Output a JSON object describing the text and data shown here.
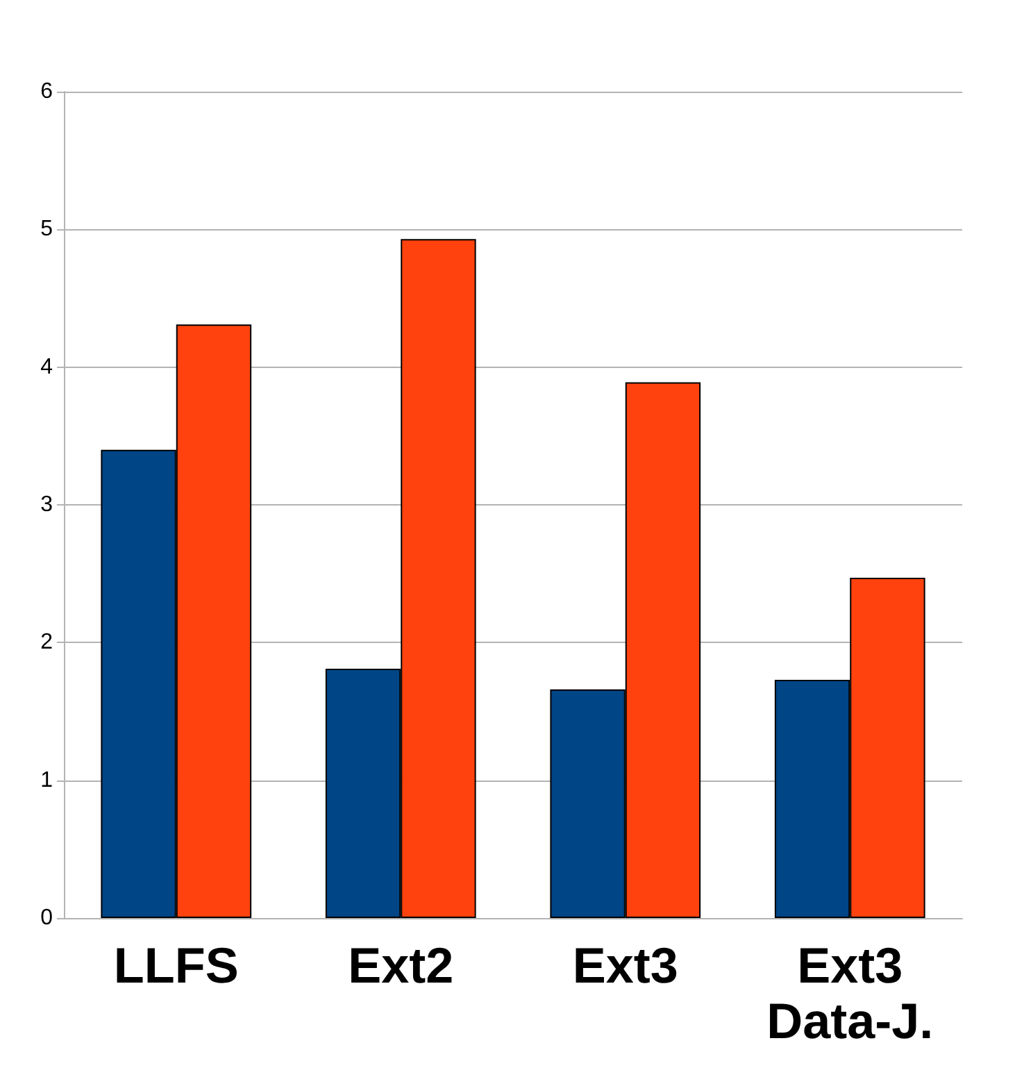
{
  "chart_data": {
    "type": "bar",
    "categories": [
      "LLFS",
      "Ext2",
      "Ext3",
      "Ext3\nData-J."
    ],
    "series": [
      {
        "color": "#004586",
        "values": [
          3.4,
          1.81,
          1.66,
          1.73
        ]
      },
      {
        "color": "#ff420e",
        "values": [
          4.31,
          4.93,
          3.89,
          2.47
        ]
      }
    ],
    "ylim": [
      0,
      6
    ],
    "yticks": [
      0,
      1,
      2,
      3,
      4,
      5,
      6
    ],
    "grid": "y"
  }
}
